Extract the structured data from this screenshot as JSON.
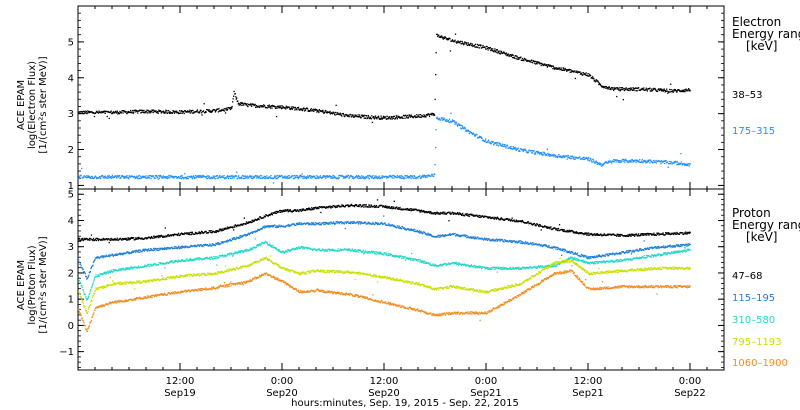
{
  "chart_data": [
    {
      "type": "scatter",
      "panel": "electron",
      "ylabel": [
        "ACE EPAM",
        "log(Electron Flux)",
        "[1/(cm²s ster MeV)]"
      ],
      "ylim": [
        0.9,
        6.0
      ],
      "yticks": [
        1,
        2,
        3,
        4,
        5
      ],
      "xlim": [
        0,
        76
      ],
      "legend_title": [
        "Electron",
        "Energy range",
        "[keV]"
      ],
      "series": [
        {
          "name": "38–53",
          "color": "#000000",
          "points": [
            [
              0,
              3.05
            ],
            [
              4,
              3.05
            ],
            [
              8,
              3.08
            ],
            [
              12,
              3.06
            ],
            [
              16,
              3.1
            ],
            [
              18,
              3.15
            ],
            [
              18.3,
              3.6
            ],
            [
              18.8,
              3.3
            ],
            [
              20,
              3.25
            ],
            [
              24,
              3.2
            ],
            [
              28,
              3.1
            ],
            [
              32,
              2.95
            ],
            [
              36,
              2.9
            ],
            [
              40,
              2.95
            ],
            [
              41.9,
              3.0
            ],
            [
              42.1,
              5.2
            ],
            [
              44,
              5.05
            ],
            [
              48,
              4.85
            ],
            [
              52,
              4.55
            ],
            [
              56,
              4.3
            ],
            [
              60,
              4.1
            ],
            [
              61.5,
              3.8
            ],
            [
              63,
              3.7
            ],
            [
              66,
              3.7
            ],
            [
              70,
              3.65
            ],
            [
              72,
              3.68
            ]
          ]
        },
        {
          "name": "175–315",
          "color": "#1E90FF",
          "points": [
            [
              0,
              1.25
            ],
            [
              8,
              1.25
            ],
            [
              16,
              1.25
            ],
            [
              24,
              1.25
            ],
            [
              32,
              1.25
            ],
            [
              40,
              1.25
            ],
            [
              41.9,
              1.3
            ],
            [
              42.1,
              2.9
            ],
            [
              44,
              2.8
            ],
            [
              46,
              2.5
            ],
            [
              48,
              2.25
            ],
            [
              52,
              2.0
            ],
            [
              56,
              1.85
            ],
            [
              60,
              1.75
            ],
            [
              61.5,
              1.6
            ],
            [
              63,
              1.7
            ],
            [
              66,
              1.7
            ],
            [
              70,
              1.65
            ],
            [
              72,
              1.6
            ]
          ]
        }
      ]
    },
    {
      "type": "scatter",
      "panel": "proton",
      "ylabel": [
        "ACE EPAM",
        "log(Proton Flux)",
        "[1/(cm²s ster MeV)]"
      ],
      "ylim": [
        -1.7,
        5.2
      ],
      "yticks": [
        -1,
        0,
        1,
        2,
        3,
        4,
        5
      ],
      "xlim": [
        0,
        76
      ],
      "xticks": [
        {
          "x": 12,
          "time": "12:00",
          "date": "Sep19"
        },
        {
          "x": 24,
          "time": "0:00",
          "date": "Sep20"
        },
        {
          "x": 36,
          "time": "12:00",
          "date": "Sep20"
        },
        {
          "x": 48,
          "time": "0:00",
          "date": "Sep21"
        },
        {
          "x": 60,
          "time": "12:00",
          "date": "Sep21"
        },
        {
          "x": 72,
          "time": "0:00",
          "date": "Sep22"
        }
      ],
      "xlabel": "hours:minutes, Sep. 19, 2015 - Sep. 22, 2015",
      "legend_title": [
        "Proton",
        "Energy range",
        "[keV]"
      ],
      "series": [
        {
          "name": "47–68",
          "color": "#000000",
          "points": [
            [
              0,
              3.3
            ],
            [
              4,
              3.3
            ],
            [
              8,
              3.35
            ],
            [
              12,
              3.5
            ],
            [
              16,
              3.6
            ],
            [
              20,
              3.95
            ],
            [
              22,
              4.2
            ],
            [
              24,
              4.4
            ],
            [
              26,
              4.4
            ],
            [
              28,
              4.5
            ],
            [
              30,
              4.55
            ],
            [
              32,
              4.6
            ],
            [
              36,
              4.55
            ],
            [
              40,
              4.4
            ],
            [
              42,
              4.3
            ],
            [
              44,
              4.3
            ],
            [
              48,
              4.15
            ],
            [
              52,
              4.0
            ],
            [
              56,
              3.7
            ],
            [
              60,
              3.5
            ],
            [
              64,
              3.45
            ],
            [
              68,
              3.5
            ],
            [
              72,
              3.55
            ]
          ]
        },
        {
          "name": "115–195",
          "color": "#1E7FD9",
          "points": [
            [
              0,
              2.5
            ],
            [
              1,
              1.8
            ],
            [
              2,
              2.6
            ],
            [
              4,
              2.7
            ],
            [
              8,
              2.9
            ],
            [
              12,
              3.0
            ],
            [
              16,
              3.1
            ],
            [
              20,
              3.5
            ],
            [
              22,
              3.8
            ],
            [
              24,
              3.8
            ],
            [
              26,
              3.9
            ],
            [
              28,
              3.9
            ],
            [
              32,
              3.95
            ],
            [
              36,
              3.9
            ],
            [
              40,
              3.6
            ],
            [
              42,
              3.4
            ],
            [
              44,
              3.5
            ],
            [
              48,
              3.3
            ],
            [
              52,
              3.2
            ],
            [
              56,
              3.0
            ],
            [
              58,
              2.8
            ],
            [
              60,
              2.6
            ],
            [
              64,
              2.8
            ],
            [
              68,
              3.0
            ],
            [
              72,
              3.1
            ]
          ]
        },
        {
          "name": "310–580",
          "color": "#20D8C8",
          "points": [
            [
              0,
              1.8
            ],
            [
              1,
              1.0
            ],
            [
              2,
              1.9
            ],
            [
              4,
              2.1
            ],
            [
              8,
              2.3
            ],
            [
              12,
              2.5
            ],
            [
              16,
              2.6
            ],
            [
              20,
              2.9
            ],
            [
              22,
              3.2
            ],
            [
              24,
              2.8
            ],
            [
              26,
              3.0
            ],
            [
              28,
              2.9
            ],
            [
              32,
              2.9
            ],
            [
              36,
              2.75
            ],
            [
              40,
              2.5
            ],
            [
              42,
              2.3
            ],
            [
              44,
              2.4
            ],
            [
              48,
              2.2
            ],
            [
              52,
              2.2
            ],
            [
              56,
              2.3
            ],
            [
              58,
              2.6
            ],
            [
              60,
              2.4
            ],
            [
              64,
              2.5
            ],
            [
              68,
              2.7
            ],
            [
              72,
              2.9
            ]
          ]
        },
        {
          "name": "795–1193",
          "color": "#C8E000",
          "points": [
            [
              0,
              1.3
            ],
            [
              1,
              0.5
            ],
            [
              2,
              1.4
            ],
            [
              4,
              1.6
            ],
            [
              8,
              1.7
            ],
            [
              12,
              1.9
            ],
            [
              16,
              2.0
            ],
            [
              20,
              2.3
            ],
            [
              22,
              2.6
            ],
            [
              24,
              2.2
            ],
            [
              26,
              2.0
            ],
            [
              28,
              2.1
            ],
            [
              32,
              2.05
            ],
            [
              36,
              1.85
            ],
            [
              40,
              1.6
            ],
            [
              42,
              1.4
            ],
            [
              44,
              1.5
            ],
            [
              48,
              1.3
            ],
            [
              52,
              1.6
            ],
            [
              56,
              2.4
            ],
            [
              58,
              2.5
            ],
            [
              60,
              2.0
            ],
            [
              64,
              2.1
            ],
            [
              68,
              2.2
            ],
            [
              72,
              2.2
            ]
          ]
        },
        {
          "name": "1060–1900",
          "color": "#F08C1E",
          "points": [
            [
              0,
              0.6
            ],
            [
              1,
              -0.2
            ],
            [
              2,
              0.7
            ],
            [
              4,
              0.9
            ],
            [
              8,
              1.1
            ],
            [
              12,
              1.3
            ],
            [
              16,
              1.45
            ],
            [
              20,
              1.7
            ],
            [
              22,
              2.0
            ],
            [
              24,
              1.7
            ],
            [
              26,
              1.3
            ],
            [
              28,
              1.35
            ],
            [
              32,
              1.2
            ],
            [
              36,
              0.9
            ],
            [
              40,
              0.6
            ],
            [
              42,
              0.4
            ],
            [
              44,
              0.5
            ],
            [
              48,
              0.5
            ],
            [
              52,
              1.2
            ],
            [
              56,
              2.0
            ],
            [
              58,
              2.1
            ],
            [
              60,
              1.4
            ],
            [
              64,
              1.5
            ],
            [
              68,
              1.5
            ],
            [
              72,
              1.5
            ]
          ]
        }
      ]
    }
  ]
}
